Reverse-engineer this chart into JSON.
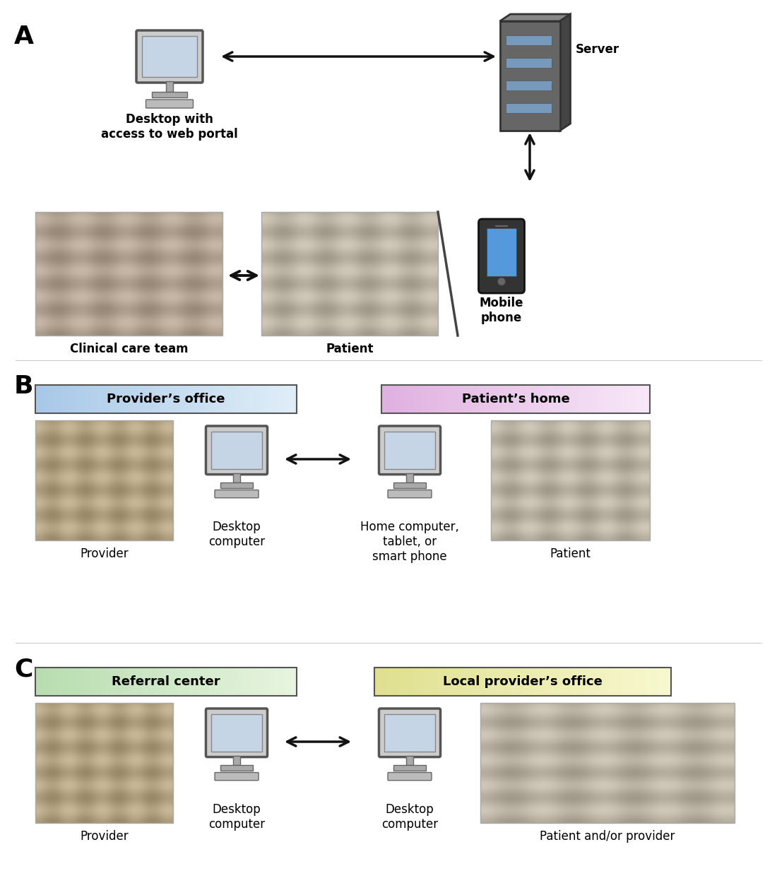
{
  "background_color": "#ffffff",
  "section_A_label": "A",
  "section_B_label": "B",
  "section_C_label": "C",
  "label_fontsize": 26,
  "text_fontsize": 12,
  "bold_label_fontsize": 13,
  "provider_office_color_left": "#a8c8e8",
  "provider_office_color_right": "#e0eef8",
  "patient_home_color_left": "#e0b0e0",
  "patient_home_color_right": "#f8e8f8",
  "referral_center_color_left": "#b8ddb0",
  "referral_center_color_right": "#e8f5e0",
  "local_office_color_left": "#e0e090",
  "local_office_color_right": "#f8f8d0",
  "box_border_color": "#555555",
  "arrow_color": "#111111",
  "server_main": "#555555",
  "server_side": "#333333",
  "server_top": "#777777",
  "server_slot": "#88aacc",
  "computer_frame": "#666666",
  "computer_screen": "#c8d4e0",
  "computer_body": "#cccccc",
  "phone_body": "#222222",
  "phone_screen": "#4488cc"
}
